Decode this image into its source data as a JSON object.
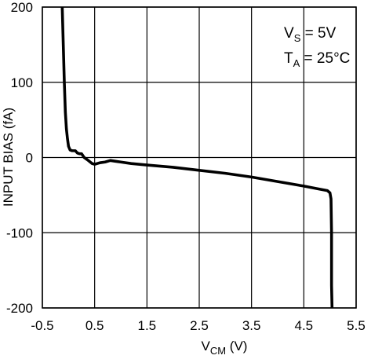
{
  "chart_data": {
    "type": "line",
    "title": "",
    "xlabel": {
      "main": "V",
      "sub": "CM",
      "suffix": " (V)"
    },
    "ylabel": "INPUT BIAS (fA)",
    "xlim": [
      -0.5,
      5.5
    ],
    "ylim": [
      -200,
      200
    ],
    "x_ticks": [
      -0.5,
      0.5,
      1.5,
      2.5,
      3.5,
      4.5,
      5.5
    ],
    "x_tick_labels": [
      "-0.5",
      "0.5",
      "1.5",
      "2.5",
      "3.5",
      "4.5",
      "5.5"
    ],
    "y_ticks": [
      200,
      100,
      0,
      -100,
      -200
    ],
    "y_tick_labels": [
      "200",
      "100",
      "0",
      "-100",
      "-200"
    ],
    "grid": true,
    "line_color": "#000000",
    "annotations": [
      {
        "main": "V",
        "sub": "S",
        "suffix": " = 5V"
      },
      {
        "main": "T",
        "sub": "A",
        "suffix": " = 25°C"
      }
    ],
    "series": [
      {
        "x": [
          -0.12,
          -0.1,
          -0.08,
          -0.06,
          -0.04,
          -0.02,
          0.0,
          0.03,
          0.07,
          0.13,
          0.17,
          0.21,
          0.25,
          0.3,
          0.38,
          0.45,
          0.5,
          0.6,
          0.7,
          0.8,
          0.9,
          1.0,
          1.2,
          1.5,
          2.0,
          2.5,
          3.0,
          3.5,
          4.0,
          4.5,
          4.8,
          4.95,
          5.0,
          5.02,
          5.03,
          5.03,
          5.03,
          5.04
        ],
        "y": [
          200,
          150,
          100,
          60,
          38,
          25,
          15,
          10,
          9,
          9,
          6,
          5,
          5,
          0,
          -4,
          -8,
          -9,
          -7,
          -6,
          -4,
          -5,
          -6,
          -8,
          -10,
          -13,
          -17,
          -21,
          -26,
          -32,
          -38,
          -42,
          -44,
          -47,
          -55,
          -100,
          -150,
          -170,
          -200
        ]
      }
    ]
  }
}
